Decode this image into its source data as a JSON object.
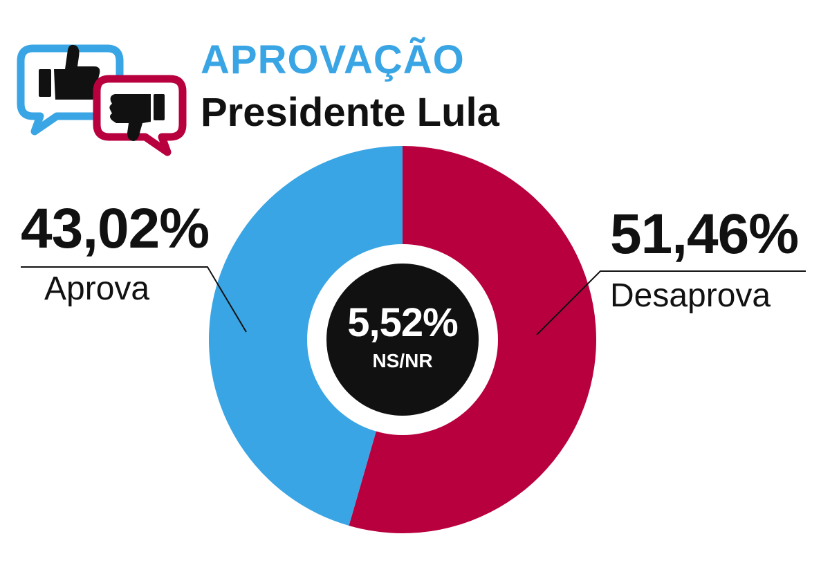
{
  "header": {
    "title": "APROVAÇÃO",
    "subtitle": "Presidente Lula"
  },
  "colors": {
    "approve": "#3aa5e4",
    "disapprove": "#b8003f",
    "neutral": "#111111"
  },
  "icons": {
    "approve": "thumbs-up-speech-bubble-icon",
    "disapprove": "thumbs-down-speech-bubble-icon"
  },
  "chart_data": {
    "type": "pie",
    "title": "APROVAÇÃO",
    "subtitle": "Presidente Lula",
    "slices": [
      {
        "name": "Aprova",
        "value": 43.02,
        "label": "43,02%"
      },
      {
        "name": "Desaprova",
        "value": 51.46,
        "label": "51,46%"
      },
      {
        "name": "NS/NR",
        "value": 5.52,
        "label": "5,52%"
      }
    ]
  }
}
